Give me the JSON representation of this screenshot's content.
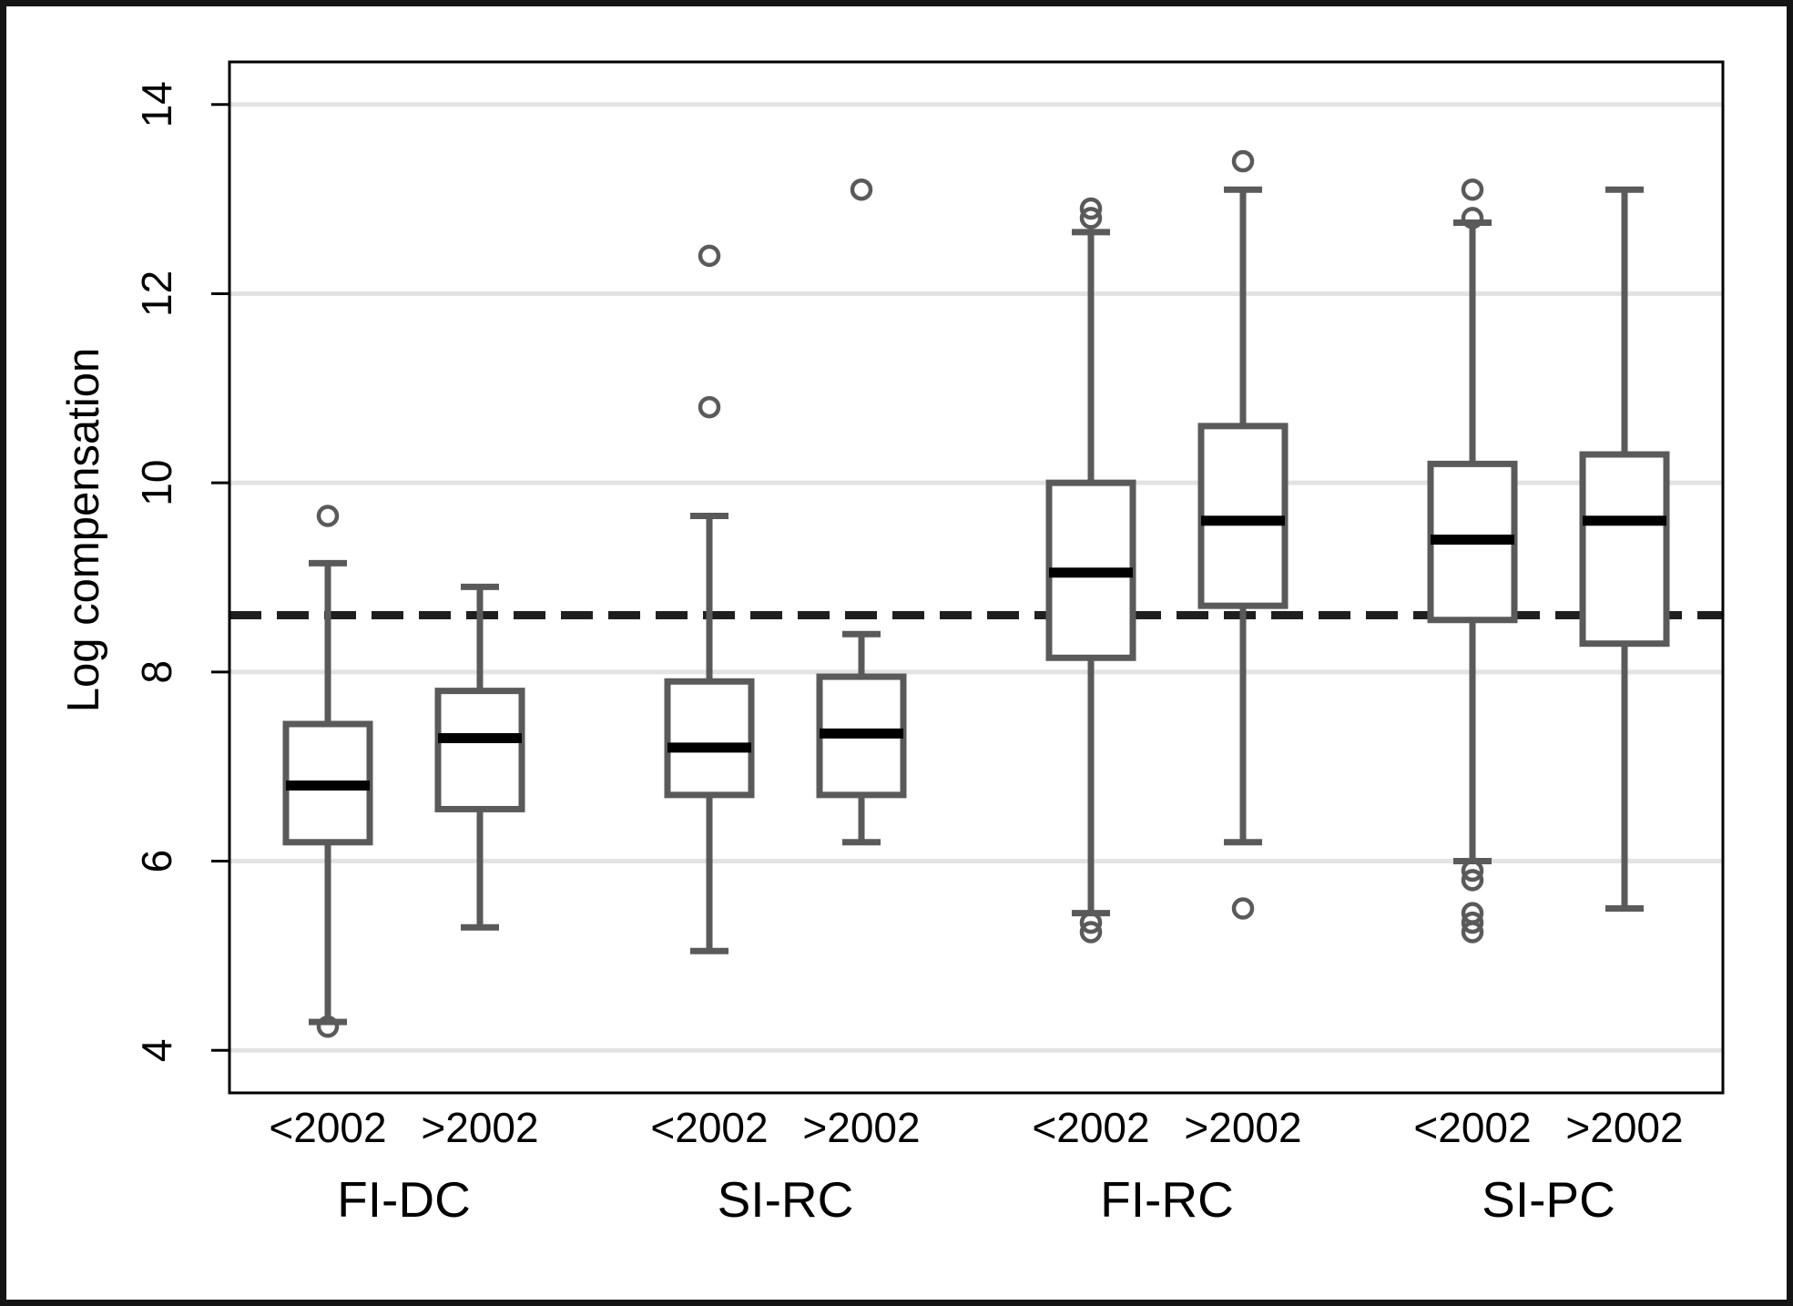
{
  "chart_data": {
    "type": "boxplot",
    "title": "",
    "ylabel": "Log compensation",
    "xlabel": "",
    "ylim": [
      3.55,
      14.45
    ],
    "y_ticks": [
      4,
      6,
      8,
      10,
      12,
      14
    ],
    "grid": "horizontal-gridlines-on",
    "legend": "none",
    "reference_line": {
      "value": 8.6,
      "style": "dashed"
    },
    "groups": [
      {
        "label": "FI-DC",
        "boxes": [
          {
            "label": "<2002",
            "whisker_low": 4.3,
            "q1": 6.2,
            "median": 6.8,
            "q3": 7.45,
            "whisker_high": 9.15,
            "outliers": [
              9.65,
              4.25
            ]
          },
          {
            "label": ">2002",
            "whisker_low": 5.3,
            "q1": 6.55,
            "median": 7.3,
            "q3": 7.8,
            "whisker_high": 8.9,
            "outliers": []
          }
        ]
      },
      {
        "label": "SI-RC",
        "boxes": [
          {
            "label": "<2002",
            "whisker_low": 5.05,
            "q1": 6.7,
            "median": 7.2,
            "q3": 7.9,
            "whisker_high": 9.65,
            "outliers": [
              12.4,
              10.8
            ]
          },
          {
            "label": ">2002",
            "whisker_low": 6.2,
            "q1": 6.7,
            "median": 7.35,
            "q3": 7.95,
            "whisker_high": 8.4,
            "outliers": [
              13.1
            ]
          }
        ]
      },
      {
        "label": "FI-RC",
        "boxes": [
          {
            "label": "<2002",
            "whisker_low": 5.45,
            "q1": 8.15,
            "median": 9.05,
            "q3": 10.0,
            "whisker_high": 12.65,
            "outliers": [
              12.9,
              12.8,
              5.35,
              5.25
            ]
          },
          {
            "label": ">2002",
            "whisker_low": 6.2,
            "q1": 8.7,
            "median": 9.6,
            "q3": 10.6,
            "whisker_high": 13.1,
            "outliers": [
              13.4,
              5.5
            ]
          }
        ]
      },
      {
        "label": "SI-PC",
        "boxes": [
          {
            "label": "<2002",
            "whisker_low": 6.0,
            "q1": 8.55,
            "median": 9.4,
            "q3": 10.2,
            "whisker_high": 12.75,
            "outliers": [
              13.1,
              12.8,
              5.9,
              5.8,
              5.45,
              5.35,
              5.25
            ]
          },
          {
            "label": ">2002",
            "whisker_low": 5.5,
            "q1": 8.3,
            "median": 9.6,
            "q3": 10.3,
            "whisker_high": 13.1,
            "outliers": []
          }
        ]
      }
    ],
    "colors": {
      "background": "#ffffff",
      "outer_frame": "#151515",
      "axis": "#000000",
      "gridline": "#e3e3e3",
      "box_stroke": "#5a5a5a",
      "median": "#000000",
      "reference_line": "#1f1f1f",
      "outlier_stroke": "#5a5a5a"
    }
  }
}
